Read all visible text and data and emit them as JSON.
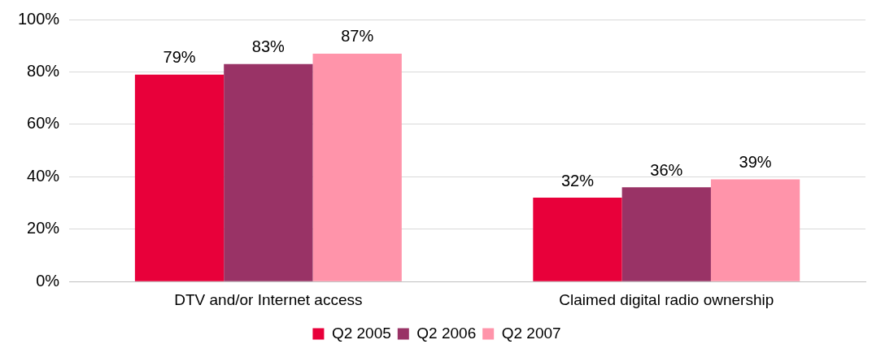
{
  "chart_data": {
    "type": "bar",
    "categories": [
      "DTV and/or Internet access",
      "Claimed digital radio ownership"
    ],
    "series": [
      {
        "name": "Q2 2005",
        "color": "#e8003a",
        "values": [
          79,
          32
        ],
        "value_labels": [
          "79%",
          "32%"
        ]
      },
      {
        "name": "Q2 2006",
        "color": "#993366",
        "values": [
          83,
          36
        ],
        "value_labels": [
          "83%",
          "36%"
        ]
      },
      {
        "name": "Q2 2007",
        "color": "#ff94aa",
        "values": [
          87,
          39
        ],
        "value_labels": [
          "87%",
          "39%"
        ]
      }
    ],
    "ylim": [
      0,
      100
    ],
    "yticks": [
      {
        "value": 0,
        "label": "0%"
      },
      {
        "value": 20,
        "label": "20%"
      },
      {
        "value": 40,
        "label": "40%"
      },
      {
        "value": 60,
        "label": "60%"
      },
      {
        "value": 80,
        "label": "80%"
      },
      {
        "value": 100,
        "label": "100%"
      }
    ],
    "grid": "y",
    "legend": "bottom"
  }
}
